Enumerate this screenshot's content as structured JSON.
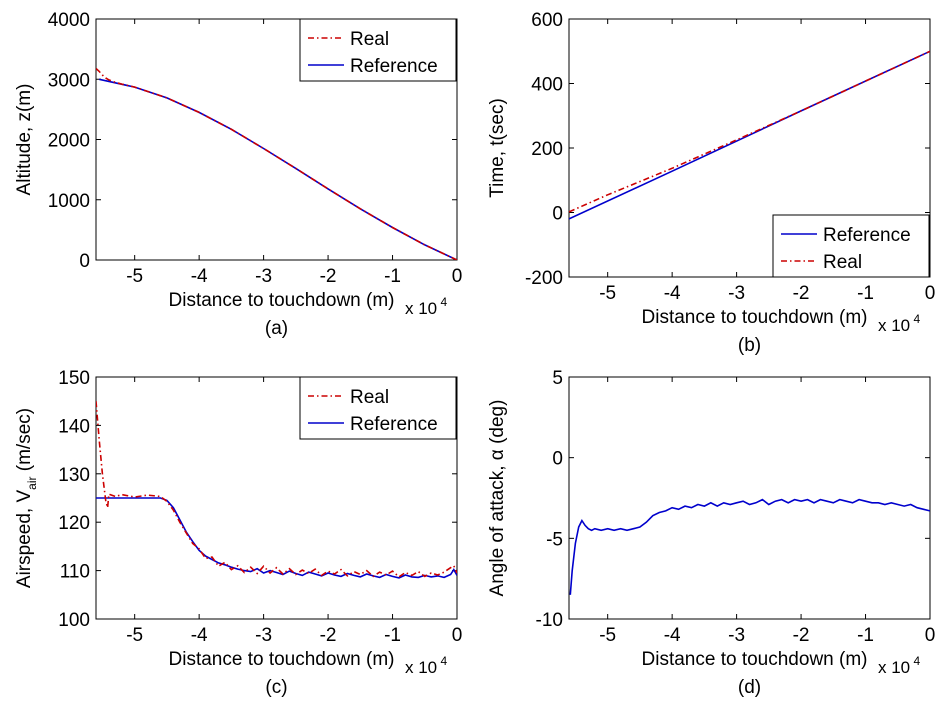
{
  "colors": {
    "real": "#cc0000",
    "reference": "#0000cc",
    "axis": "#000000"
  },
  "chart_data": [
    {
      "type": "line",
      "caption": "(a)",
      "xlabel": "Distance to touchdown (m)",
      "ylabel": "Altitude, z(m)",
      "x_multiplier": "x 10",
      "x_multiplier_exp": "4",
      "xlim": [
        -5.6,
        0
      ],
      "ylim": [
        0,
        4000
      ],
      "xticks": [
        -5,
        -4,
        -3,
        -2,
        -1,
        0
      ],
      "yticks": [
        0,
        1000,
        2000,
        3000,
        4000
      ],
      "grid": false,
      "legend": "top-right",
      "legend_order": [
        "Real",
        "Reference"
      ],
      "series": [
        {
          "name": "Reference",
          "style": "solid",
          "color": "#0000cc",
          "x": [
            -5.55,
            -5.0,
            -4.5,
            -4.0,
            -3.5,
            -3.0,
            -2.5,
            -2.0,
            -1.5,
            -1.0,
            -0.5,
            0
          ],
          "y": [
            3000,
            2870,
            2690,
            2450,
            2170,
            1850,
            1520,
            1180,
            850,
            540,
            250,
            0
          ]
        },
        {
          "name": "Real",
          "style": "dashdot",
          "color": "#cc0000",
          "x": [
            -5.6,
            -5.55,
            -5.5,
            -5.45,
            -5.4,
            -5.3,
            -5.2,
            -5.0,
            -4.5,
            -4.0,
            -3.5,
            -3.0,
            -2.5,
            -2.0,
            -1.5,
            -1.0,
            -0.5,
            0
          ],
          "y": [
            3180,
            3130,
            3070,
            3020,
            2990,
            2950,
            2920,
            2870,
            2690,
            2450,
            2170,
            1850,
            1520,
            1180,
            850,
            540,
            250,
            0
          ]
        }
      ]
    },
    {
      "type": "line",
      "caption": "(b)",
      "xlabel": "Distance to touchdown (m)",
      "ylabel": "Time, t(sec)",
      "x_multiplier": "x 10",
      "x_multiplier_exp": "4",
      "xlim": [
        -5.6,
        0
      ],
      "ylim": [
        -200,
        600
      ],
      "xticks": [
        -5,
        -4,
        -3,
        -2,
        -1,
        0
      ],
      "yticks": [
        -200,
        0,
        200,
        400,
        600
      ],
      "grid": false,
      "legend": "bottom-right",
      "legend_order": [
        "Reference",
        "Real"
      ],
      "series": [
        {
          "name": "Reference",
          "style": "solid",
          "color": "#0000cc",
          "x": [
            -5.6,
            -4.0,
            -2.0,
            0
          ],
          "y": [
            -20,
            128,
            315,
            500
          ]
        },
        {
          "name": "Real",
          "style": "dashdot",
          "color": "#cc0000",
          "x": [
            -5.6,
            -5.0,
            -4.0,
            -3.0,
            -2.0,
            0
          ],
          "y": [
            2,
            55,
            137,
            225,
            315,
            500
          ]
        }
      ]
    },
    {
      "type": "line",
      "caption": "(c)",
      "xlabel": "Distance to touchdown (m)",
      "ylabel": "Airspeed, V",
      "ylabel_sub": "air",
      "ylabel_unit": " (m/sec)",
      "x_multiplier": "x 10",
      "x_multiplier_exp": "4",
      "xlim": [
        -5.6,
        0
      ],
      "ylim": [
        100,
        150
      ],
      "xticks": [
        -5,
        -4,
        -3,
        -2,
        -1,
        0
      ],
      "yticks": [
        100,
        110,
        120,
        130,
        140,
        150
      ],
      "grid": false,
      "legend": "top-right",
      "legend_order": [
        "Real",
        "Reference"
      ],
      "series": [
        {
          "name": "Reference",
          "style": "solid",
          "color": "#0000cc",
          "x": [
            -5.6,
            -5.2,
            -4.8,
            -4.6,
            -4.5,
            -4.4,
            -4.3,
            -4.2,
            -4.1,
            -4.0,
            -3.9,
            -3.8,
            -3.7,
            -3.6,
            -3.5,
            -3.4,
            -3.3,
            -3.2,
            -3.1,
            -3.0,
            -2.9,
            -2.8,
            -2.7,
            -2.6,
            -2.5,
            -2.4,
            -2.3,
            -2.2,
            -2.1,
            -2.0,
            -1.9,
            -1.8,
            -1.7,
            -1.6,
            -1.5,
            -1.4,
            -1.3,
            -1.2,
            -1.1,
            -1.0,
            -0.9,
            -0.8,
            -0.7,
            -0.6,
            -0.5,
            -0.4,
            -0.3,
            -0.2,
            -0.1,
            -0.05,
            0
          ],
          "y": [
            125,
            125,
            125,
            125,
            124.5,
            123,
            120.5,
            118,
            116,
            114.2,
            113,
            112.3,
            111.6,
            111.2,
            110.7,
            110.3,
            110.0,
            109.8,
            110.4,
            109.5,
            110.0,
            109.6,
            109.2,
            109.9,
            109.4,
            109.0,
            109.7,
            109.3,
            108.9,
            109.5,
            109.1,
            108.8,
            109.4,
            109.0,
            108.7,
            109.3,
            108.9,
            108.6,
            109.2,
            108.8,
            108.5,
            109.1,
            108.7,
            108.6,
            109.0,
            108.7,
            108.9,
            108.6,
            109.2,
            110.2,
            109.0
          ]
        },
        {
          "name": "Real",
          "style": "dashdot",
          "color": "#cc0000",
          "x": [
            -5.6,
            -5.55,
            -5.5,
            -5.45,
            -5.42,
            -5.4,
            -5.3,
            -5.2,
            -5.0,
            -4.8,
            -4.6,
            -4.5,
            -4.4,
            -4.3,
            -4.2,
            -4.1,
            -4.0,
            -3.9,
            -3.8,
            -3.7,
            -3.6,
            -3.5,
            -3.4,
            -3.3,
            -3.2,
            -3.1,
            -3.0,
            -2.9,
            -2.8,
            -2.7,
            -2.6,
            -2.5,
            -2.4,
            -2.3,
            -2.2,
            -2.1,
            -2.0,
            -1.9,
            -1.8,
            -1.7,
            -1.6,
            -1.5,
            -1.4,
            -1.3,
            -1.2,
            -1.1,
            -1.0,
            -0.9,
            -0.8,
            -0.7,
            -0.6,
            -0.5,
            -0.4,
            -0.3,
            -0.2,
            -0.1,
            -0.05,
            0
          ],
          "y": [
            145,
            137,
            130,
            124.5,
            123,
            125.8,
            125.3,
            125.7,
            125.2,
            125.6,
            125.3,
            124.3,
            122.5,
            120.0,
            117.8,
            115.6,
            114.5,
            112.5,
            112.8,
            110.9,
            111.7,
            110.2,
            111.0,
            109.6,
            110.7,
            109.4,
            110.9,
            109.5,
            110.6,
            109.3,
            110.4,
            109.2,
            110.1,
            109.4,
            110.3,
            109.0,
            109.9,
            109.3,
            110.2,
            108.9,
            109.8,
            109.2,
            110.0,
            108.8,
            109.7,
            109.1,
            109.9,
            108.7,
            109.6,
            109.0,
            109.8,
            108.8,
            109.5,
            109.1,
            109.7,
            110.6,
            111.0,
            109.5
          ]
        }
      ]
    },
    {
      "type": "line",
      "caption": "(d)",
      "xlabel": "Distance to touchdown (m)",
      "ylabel": "Angle of attack, α (deg)",
      "x_multiplier": "x 10",
      "x_multiplier_exp": "4",
      "xlim": [
        -5.6,
        0
      ],
      "ylim": [
        -10,
        5
      ],
      "xticks": [
        -5,
        -4,
        -3,
        -2,
        -1,
        0
      ],
      "yticks": [
        -10,
        -5,
        0,
        5
      ],
      "grid": false,
      "legend": "none",
      "series": [
        {
          "style": "solid",
          "color": "#0000cc",
          "x": [
            -5.58,
            -5.55,
            -5.5,
            -5.45,
            -5.4,
            -5.35,
            -5.3,
            -5.25,
            -5.2,
            -5.1,
            -5.0,
            -4.9,
            -4.8,
            -4.7,
            -4.6,
            -4.5,
            -4.4,
            -4.3,
            -4.2,
            -4.1,
            -4.0,
            -3.9,
            -3.8,
            -3.7,
            -3.6,
            -3.5,
            -3.4,
            -3.3,
            -3.2,
            -3.1,
            -3.0,
            -2.9,
            -2.8,
            -2.7,
            -2.6,
            -2.5,
            -2.4,
            -2.3,
            -2.2,
            -2.1,
            -2.0,
            -1.9,
            -1.8,
            -1.7,
            -1.6,
            -1.5,
            -1.4,
            -1.3,
            -1.2,
            -1.1,
            -1.0,
            -0.9,
            -0.8,
            -0.7,
            -0.6,
            -0.5,
            -0.4,
            -0.3,
            -0.2,
            -0.1,
            0
          ],
          "y": [
            -8.5,
            -7.0,
            -5.3,
            -4.3,
            -3.9,
            -4.2,
            -4.4,
            -4.5,
            -4.4,
            -4.5,
            -4.4,
            -4.5,
            -4.4,
            -4.5,
            -4.4,
            -4.3,
            -4.0,
            -3.6,
            -3.4,
            -3.3,
            -3.1,
            -3.2,
            -3.0,
            -3.1,
            -2.9,
            -3.0,
            -2.8,
            -3.0,
            -2.8,
            -2.9,
            -2.8,
            -2.7,
            -2.9,
            -2.8,
            -2.6,
            -2.9,
            -2.7,
            -2.6,
            -2.8,
            -2.6,
            -2.7,
            -2.6,
            -2.8,
            -2.6,
            -2.7,
            -2.8,
            -2.6,
            -2.7,
            -2.8,
            -2.6,
            -2.7,
            -2.8,
            -2.8,
            -2.9,
            -2.8,
            -2.9,
            -3.0,
            -2.9,
            -3.1,
            -3.2,
            -3.3
          ]
        }
      ]
    }
  ]
}
